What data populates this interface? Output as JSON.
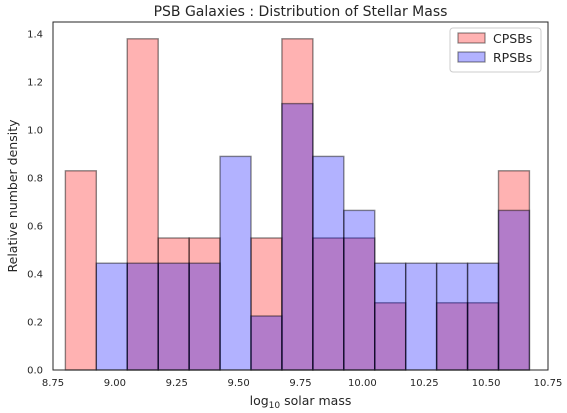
{
  "chart_data": {
    "type": "bar",
    "title": "PSB Galaxies : Distribution of Stellar Mass",
    "xlabel_main": "log",
    "xlabel_sub": "10",
    "xlabel_rest": " solar mass",
    "ylabel": "Relative number density",
    "xlim": [
      8.75,
      10.75
    ],
    "ylim": [
      0,
      1.45
    ],
    "xticks": [
      8.75,
      9.0,
      9.25,
      9.5,
      9.75,
      10.0,
      10.25,
      10.5,
      10.75
    ],
    "xtick_labels": [
      "8.75",
      "9.00",
      "9.25",
      "9.50",
      "9.75",
      "10.00",
      "10.25",
      "10.50",
      "10.75"
    ],
    "yticks": [
      0.0,
      0.2,
      0.4,
      0.6,
      0.8,
      1.0,
      1.2,
      1.4
    ],
    "ytick_labels": [
      "0.0",
      "0.2",
      "0.4",
      "0.6",
      "0.8",
      "1.0",
      "1.2",
      "1.4"
    ],
    "bin_edges": [
      8.8,
      8.925,
      9.05,
      9.175,
      9.3,
      9.425,
      9.55,
      9.675,
      9.8,
      9.925,
      10.05,
      10.175,
      10.3,
      10.425,
      10.55,
      10.675
    ],
    "grid": false,
    "legend_position": "top-right",
    "series": [
      {
        "name": "CPSBs",
        "color": "#ff0000",
        "values": [
          0.83,
          0,
          1.38,
          0.55,
          0.55,
          0,
          0.55,
          1.38,
          0.55,
          0.55,
          0.28,
          0,
          0.28,
          0.28,
          0.83
        ]
      },
      {
        "name": "RPSBs",
        "color": "#0000ff",
        "values": [
          0,
          0.445,
          0.445,
          0.445,
          0.445,
          0.89,
          0.225,
          1.11,
          0.89,
          0.665,
          0.445,
          0.445,
          0.445,
          0.445,
          0.665
        ]
      }
    ]
  }
}
